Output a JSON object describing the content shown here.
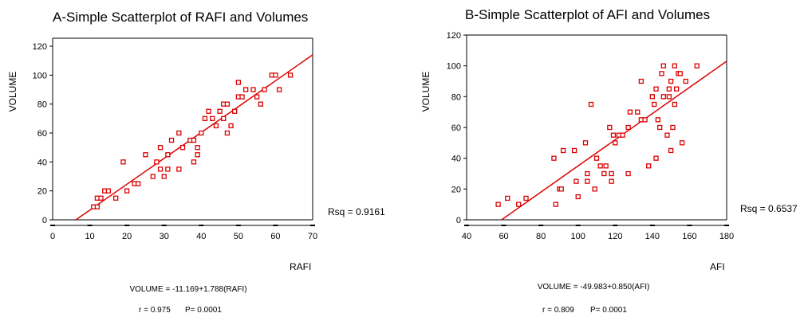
{
  "colors": {
    "marker": "#dd0000",
    "fit_line": "#dd0000",
    "axis": "#000000"
  },
  "chart_data": [
    {
      "type": "scatter",
      "title": "A-Simple Scatterplot of RAFI and Volumes",
      "xlabel": "RAFI",
      "ylabel": "VOLUME",
      "xlim": [
        0,
        70
      ],
      "ylim": [
        0,
        120
      ],
      "xticks": [
        0,
        10,
        20,
        30,
        40,
        50,
        60,
        70
      ],
      "yticks": [
        0,
        20,
        40,
        60,
        80,
        100,
        120
      ],
      "fit": {
        "intercept": -11.169,
        "slope": 1.788
      },
      "rsq_label": "Rsq = 0.9161",
      "equation": "VOLUME = -11.169+1.788(RAFI)",
      "stats": {
        "r": "r = 0.975",
        "p": "P= 0.0001"
      },
      "points": [
        [
          11,
          9
        ],
        [
          12,
          9
        ],
        [
          12,
          15
        ],
        [
          13,
          15
        ],
        [
          14,
          20
        ],
        [
          15,
          20
        ],
        [
          17,
          15
        ],
        [
          19,
          40
        ],
        [
          20,
          20
        ],
        [
          22,
          25
        ],
        [
          23,
          25
        ],
        [
          25,
          45
        ],
        [
          27,
          30
        ],
        [
          28,
          40
        ],
        [
          29,
          50
        ],
        [
          29,
          35
        ],
        [
          30,
          30
        ],
        [
          31,
          35
        ],
        [
          31,
          45
        ],
        [
          32,
          55
        ],
        [
          34,
          35
        ],
        [
          34,
          60
        ],
        [
          35,
          50
        ],
        [
          37,
          55
        ],
        [
          38,
          40
        ],
        [
          38,
          55
        ],
        [
          39,
          50
        ],
        [
          39,
          45
        ],
        [
          40,
          60
        ],
        [
          41,
          70
        ],
        [
          42,
          75
        ],
        [
          43,
          70
        ],
        [
          44,
          65
        ],
        [
          45,
          75
        ],
        [
          46,
          80
        ],
        [
          46,
          70
        ],
        [
          47,
          80
        ],
        [
          47,
          60
        ],
        [
          48,
          65
        ],
        [
          49,
          75
        ],
        [
          50,
          95
        ],
        [
          50,
          85
        ],
        [
          51,
          85
        ],
        [
          52,
          90
        ],
        [
          54,
          90
        ],
        [
          55,
          85
        ],
        [
          56,
          80
        ],
        [
          57,
          90
        ],
        [
          59,
          100
        ],
        [
          60,
          100
        ],
        [
          61,
          90
        ],
        [
          64,
          100
        ]
      ]
    },
    {
      "type": "scatter",
      "title": "B-Simple Scatterplot of AFI and Volumes",
      "xlabel": "AFI",
      "ylabel": "VOLUME",
      "xlim": [
        40,
        180
      ],
      "ylim": [
        0,
        120
      ],
      "xticks": [
        40,
        60,
        80,
        100,
        120,
        140,
        160,
        180
      ],
      "yticks": [
        0,
        20,
        40,
        60,
        80,
        100,
        120
      ],
      "fit": {
        "intercept": -49.983,
        "slope": 0.85
      },
      "rsq_label": "Rsq = 0.6537",
      "equation": "VOLUME = -49.983+0.850(AFI)",
      "stats": {
        "r": "r = 0.809",
        "p": "P= 0.0001"
      },
      "points": [
        [
          57,
          10
        ],
        [
          62,
          14
        ],
        [
          68,
          10
        ],
        [
          72,
          14
        ],
        [
          87,
          40
        ],
        [
          88,
          10
        ],
        [
          90,
          20
        ],
        [
          91,
          20
        ],
        [
          92,
          45
        ],
        [
          98,
          45
        ],
        [
          99,
          25
        ],
        [
          100,
          15
        ],
        [
          104,
          50
        ],
        [
          105,
          30
        ],
        [
          105,
          25
        ],
        [
          107,
          75
        ],
        [
          109,
          20
        ],
        [
          110,
          40
        ],
        [
          112,
          35
        ],
        [
          114,
          30
        ],
        [
          115,
          35
        ],
        [
          117,
          60
        ],
        [
          118,
          25
        ],
        [
          118,
          30
        ],
        [
          119,
          55
        ],
        [
          120,
          50
        ],
        [
          122,
          55
        ],
        [
          124,
          55
        ],
        [
          127,
          30
        ],
        [
          127,
          60
        ],
        [
          128,
          70
        ],
        [
          132,
          70
        ],
        [
          134,
          65
        ],
        [
          134,
          90
        ],
        [
          136,
          65
        ],
        [
          138,
          35
        ],
        [
          140,
          80
        ],
        [
          141,
          75
        ],
        [
          142,
          40
        ],
        [
          142,
          85
        ],
        [
          143,
          65
        ],
        [
          144,
          60
        ],
        [
          145,
          95
        ],
        [
          146,
          100
        ],
        [
          146,
          80
        ],
        [
          148,
          55
        ],
        [
          149,
          80
        ],
        [
          149,
          85
        ],
        [
          150,
          45
        ],
        [
          150,
          90
        ],
        [
          151,
          60
        ],
        [
          152,
          100
        ],
        [
          152,
          75
        ],
        [
          153,
          85
        ],
        [
          154,
          95
        ],
        [
          155,
          95
        ],
        [
          156,
          50
        ],
        [
          158,
          90
        ],
        [
          164,
          100
        ]
      ]
    }
  ]
}
